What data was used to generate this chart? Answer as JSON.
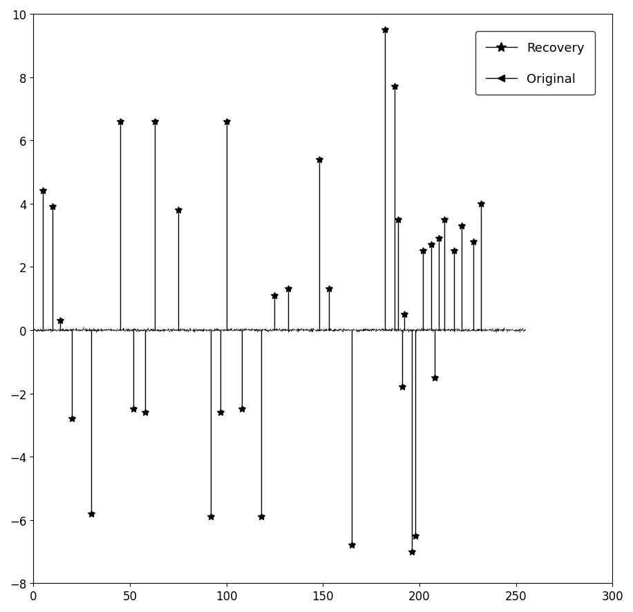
{
  "xlim": [
    0,
    300
  ],
  "ylim": [
    -8,
    10
  ],
  "xticks": [
    0,
    50,
    100,
    150,
    200,
    250,
    300
  ],
  "yticks": [
    -8,
    -6,
    -4,
    -2,
    0,
    2,
    4,
    6,
    8,
    10
  ],
  "spikes": [
    [
      5,
      4.4
    ],
    [
      10,
      3.9
    ],
    [
      14,
      0.3
    ],
    [
      20,
      -2.8
    ],
    [
      30,
      -5.8
    ],
    [
      45,
      6.6
    ],
    [
      52,
      -2.5
    ],
    [
      58,
      -2.6
    ],
    [
      63,
      6.6
    ],
    [
      75,
      3.8
    ],
    [
      92,
      -5.9
    ],
    [
      97,
      -2.6
    ],
    [
      100,
      6.6
    ],
    [
      108,
      -2.5
    ],
    [
      118,
      -5.9
    ],
    [
      125,
      1.1
    ],
    [
      132,
      1.3
    ],
    [
      148,
      5.4
    ],
    [
      153,
      1.3
    ],
    [
      165,
      -6.8
    ],
    [
      182,
      9.5
    ],
    [
      187,
      7.7
    ],
    [
      189,
      3.5
    ],
    [
      191,
      -1.8
    ],
    [
      192,
      0.5
    ],
    [
      196,
      -7.0
    ],
    [
      198,
      -6.5
    ],
    [
      202,
      2.5
    ],
    [
      206,
      2.7
    ],
    [
      208,
      -1.5
    ],
    [
      210,
      2.9
    ],
    [
      213,
      3.5
    ],
    [
      218,
      2.5
    ],
    [
      222,
      3.3
    ],
    [
      228,
      2.8
    ],
    [
      232,
      4.0
    ]
  ],
  "noise_amplitude": 0.025,
  "N": 256,
  "noise_N": 2048,
  "line_color": "#000000",
  "background_color": "#ffffff",
  "legend_recovery": "Recovery",
  "legend_original": "Original"
}
